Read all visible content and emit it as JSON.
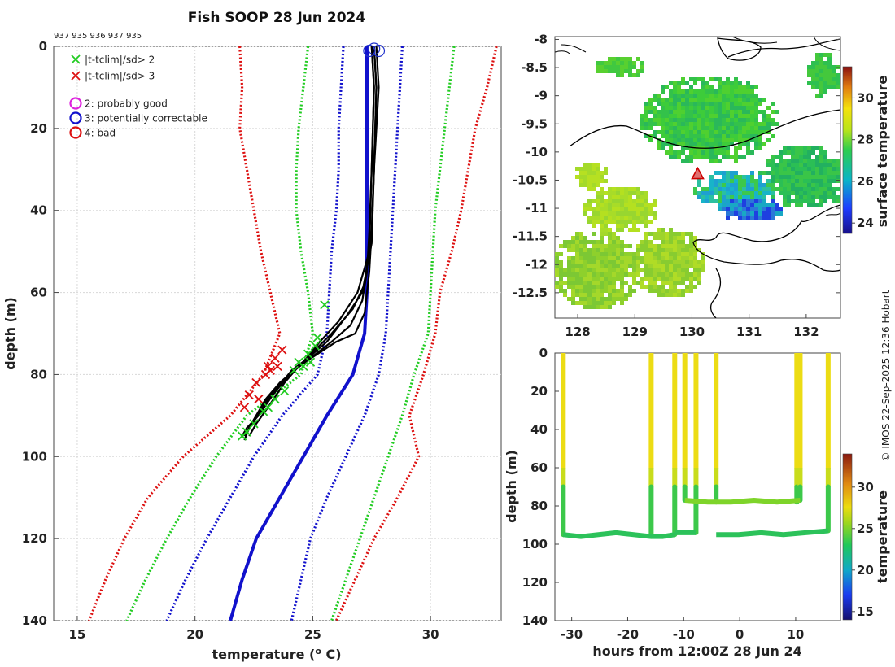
{
  "chart_data": [
    {
      "type": "line",
      "title": "Fish SOOP 28 Jun 2024",
      "subtitle": "937 935 936 937 935",
      "xlabel": "temperature (",
      "xlabel_sup": "o",
      "xlabel_unit": " C)",
      "ylabel": "depth (m)",
      "xlim": [
        14,
        33
      ],
      "ylim": [
        140,
        0
      ],
      "xticks": [
        15,
        20,
        25,
        30
      ],
      "yticks": [
        0,
        20,
        40,
        60,
        80,
        100,
        120,
        140
      ],
      "legend": [
        {
          "symbol": "x",
          "color": "#22cc22",
          "label": "|t-tclim|/sd> 2"
        },
        {
          "symbol": "x",
          "color": "#dd1111",
          "label": "|t-tclim|/sd> 3"
        },
        {
          "symbol": "o",
          "color": "#dd22dd",
          "label": "2: probably good"
        },
        {
          "symbol": "o",
          "color": "#1111cc",
          "label": "3: potentially correctable"
        },
        {
          "symbol": "o",
          "color": "#dd1111",
          "label": "4: bad"
        }
      ],
      "depths": [
        0,
        10,
        20,
        30,
        40,
        50,
        60,
        70,
        80,
        90,
        100,
        110,
        120,
        130,
        140
      ],
      "climatology": [
        {
          "name": "mean",
          "color": "#1111cc",
          "style": "solid",
          "values": [
            27.3,
            27.3,
            27.3,
            27.3,
            27.3,
            27.3,
            27.3,
            27.2,
            26.7,
            25.6,
            24.6,
            23.6,
            22.6,
            22.0,
            21.5
          ]
        },
        {
          "name": "mean-1sd",
          "color": "#1111cc",
          "style": "dotted",
          "values": [
            26.3,
            26.2,
            26.1,
            26.1,
            26.0,
            25.8,
            25.7,
            25.6,
            25.2,
            23.7,
            22.5,
            21.5,
            20.5,
            19.6,
            18.8
          ]
        },
        {
          "name": "mean+1sd",
          "color": "#1111cc",
          "style": "dotted",
          "values": [
            28.8,
            28.7,
            28.6,
            28.5,
            28.4,
            28.3,
            28.2,
            28.1,
            27.8,
            27.2,
            26.4,
            25.6,
            24.9,
            24.5,
            24.1
          ]
        },
        {
          "name": "mean-2sd",
          "color": "#22cc22",
          "style": "dotted",
          "values": [
            24.8,
            24.6,
            24.4,
            24.3,
            24.3,
            24.5,
            24.8,
            25.0,
            24.5,
            22.2,
            20.9,
            19.8,
            18.8,
            17.9,
            17.1
          ]
        },
        {
          "name": "mean+2sd",
          "color": "#22cc22",
          "style": "dotted",
          "values": [
            31.0,
            30.8,
            30.6,
            30.4,
            30.2,
            30.1,
            30.0,
            29.9,
            29.3,
            28.8,
            28.2,
            27.6,
            27.0,
            26.4,
            25.8
          ]
        },
        {
          "name": "mean-3sd",
          "color": "#dd1111",
          "style": "dotted",
          "values": [
            21.9,
            22.0,
            21.9,
            22.2,
            22.5,
            22.8,
            23.2,
            23.6,
            22.9,
            21.5,
            19.5,
            18.0,
            17.0,
            16.2,
            15.5
          ]
        },
        {
          "name": "mean+3sd",
          "color": "#dd1111",
          "style": "dotted",
          "values": [
            32.8,
            32.4,
            31.9,
            31.6,
            31.3,
            30.9,
            30.4,
            30.2,
            29.7,
            29.1,
            29.5,
            28.6,
            27.6,
            26.8,
            26.0
          ]
        }
      ],
      "profiles": [
        {
          "depths": [
            0,
            10,
            30,
            45,
            55,
            60,
            65,
            70,
            72,
            75,
            78,
            82,
            86,
            92,
            95
          ],
          "values": [
            27.6,
            27.7,
            27.6,
            27.5,
            27.4,
            27.3,
            27.2,
            26.8,
            26.0,
            25.2,
            24.4,
            23.6,
            23.0,
            22.4,
            22.1
          ]
        },
        {
          "depths": [
            0,
            10,
            30,
            45,
            55,
            62,
            68,
            72,
            76,
            80,
            85,
            90,
            93,
            95
          ],
          "values": [
            27.5,
            27.6,
            27.5,
            27.4,
            27.3,
            27.1,
            26.6,
            25.8,
            24.9,
            24.0,
            23.3,
            22.7,
            22.2,
            22.0
          ]
        },
        {
          "depths": [
            0,
            10,
            30,
            45,
            58,
            64,
            70,
            74,
            78,
            82,
            88,
            92,
            95
          ],
          "values": [
            27.7,
            27.8,
            27.6,
            27.5,
            27.2,
            26.7,
            25.8,
            25.1,
            24.4,
            23.8,
            23.1,
            22.6,
            22.3
          ]
        },
        {
          "depths": [
            0,
            10,
            30,
            48,
            60,
            66,
            72,
            76,
            79,
            84,
            89,
            93,
            96
          ],
          "values": [
            27.6,
            27.7,
            27.6,
            27.5,
            27.1,
            26.4,
            25.6,
            24.8,
            24.1,
            23.4,
            22.8,
            22.3,
            22.1
          ]
        },
        {
          "depths": [
            0,
            10,
            30,
            50,
            60,
            67,
            72,
            77,
            80,
            85,
            90,
            94
          ],
          "values": [
            27.5,
            27.6,
            27.5,
            27.4,
            26.9,
            26.1,
            25.3,
            24.6,
            24.0,
            23.2,
            22.6,
            22.2
          ]
        }
      ],
      "flags_green": [
        [
          24.4,
          77
        ],
        [
          24.8,
          75
        ],
        [
          25.2,
          71
        ],
        [
          25.5,
          63
        ],
        [
          24.2,
          79
        ],
        [
          23.8,
          84
        ],
        [
          23.4,
          86
        ],
        [
          22.9,
          89
        ],
        [
          22.5,
          92
        ],
        [
          22.2,
          94
        ],
        [
          22.0,
          95
        ],
        [
          24.6,
          78
        ],
        [
          24.9,
          77
        ],
        [
          25.1,
          73
        ],
        [
          23.1,
          88
        ]
      ],
      "flags_red": [
        [
          23.4,
          76
        ],
        [
          23.1,
          78
        ],
        [
          23.7,
          74
        ],
        [
          23.0,
          80
        ],
        [
          22.6,
          82
        ],
        [
          22.3,
          85
        ],
        [
          22.1,
          88
        ],
        [
          22.7,
          86
        ],
        [
          23.2,
          79
        ],
        [
          23.5,
          78
        ]
      ],
      "qc_circles": [
        [
          27.6,
          0
        ],
        [
          27.8,
          0.5
        ],
        [
          27.4,
          0.5
        ]
      ]
    },
    {
      "type": "heatmap",
      "xticks": [
        128,
        129,
        130,
        131,
        132
      ],
      "yticks": [
        -8,
        -8.5,
        -9,
        -9.5,
        -10,
        -10.5,
        -11,
        -11.5,
        -12,
        -12.5
      ],
      "xlim": [
        127.6,
        132.6
      ],
      "ylim": [
        -12.95,
        -7.95
      ],
      "marker": {
        "lon": 130.1,
        "lat": -10.4
      },
      "colorbar": {
        "label": "surface temperature",
        "range": [
          23.5,
          31.5
        ],
        "ticks": [
          24,
          26,
          28,
          30
        ]
      }
    },
    {
      "type": "scatter",
      "xlabel": "hours from 12:00Z 28 Jun 24",
      "ylabel": "depth (m)",
      "xticks": [
        -30,
        -20,
        -10,
        0,
        10
      ],
      "yticks": [
        0,
        20,
        40,
        60,
        80,
        100,
        120,
        140
      ],
      "xlim": [
        -33,
        18
      ],
      "ylim": [
        140,
        0
      ],
      "casts": [
        {
          "hour": -31.5,
          "max_depth": 95
        },
        {
          "hour": -15.8,
          "max_depth": 96
        },
        {
          "hour": -11.6,
          "max_depth": 95
        },
        {
          "hour": -9.8,
          "max_depth": 77
        },
        {
          "hour": -7.8,
          "max_depth": 94
        },
        {
          "hour": -4.2,
          "max_depth": 78
        },
        {
          "hour": 10.2,
          "max_depth": 78
        },
        {
          "hour": 10.8,
          "max_depth": 77
        },
        {
          "hour": 15.8,
          "max_depth": 93
        }
      ],
      "bottom_segments": [
        {
          "from": -31.5,
          "to": -15.8,
          "depths": [
            95,
            96,
            95,
            94,
            95,
            96
          ]
        },
        {
          "from": -15.8,
          "to": -11.6,
          "depths": [
            96,
            96,
            95
          ]
        },
        {
          "from": -11.6,
          "to": -7.8,
          "depths": [
            94,
            94,
            94
          ]
        },
        {
          "from": -4.2,
          "to": 15.8,
          "depths": [
            95,
            95,
            94,
            95,
            94,
            93
          ]
        },
        {
          "from": -9.8,
          "to": 10.8,
          "depths": [
            77,
            78,
            78,
            77,
            78,
            77
          ]
        }
      ],
      "colorbar": {
        "label": "temperature",
        "range": [
          14,
          34
        ],
        "ticks": [
          15,
          20,
          25,
          30
        ]
      }
    }
  ],
  "credit": "© IMOS 22-Sep-2025 12:36 Hobart"
}
